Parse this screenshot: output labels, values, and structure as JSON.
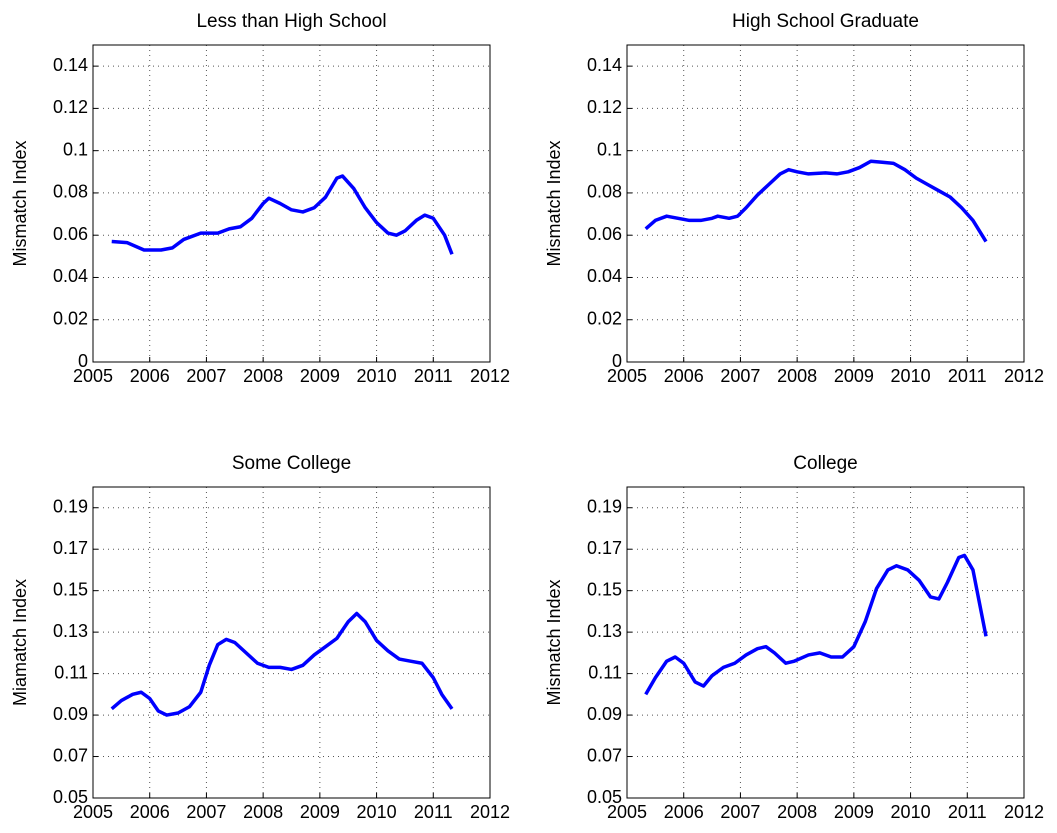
{
  "chart_data": [
    {
      "type": "line",
      "title": "Less than High School",
      "ylabel": "Mismatch Index",
      "color": "#0000ff",
      "grid": true,
      "xlim": [
        2005,
        2012
      ],
      "xticks": [
        2005,
        2006,
        2007,
        2008,
        2009,
        2010,
        2011,
        2012
      ],
      "ylim": [
        0,
        0.15
      ],
      "yticks": [
        0,
        0.02,
        0.04,
        0.06,
        0.08,
        0.1,
        0.12,
        0.14
      ],
      "x": [
        2005.33,
        2005.6,
        2005.9,
        2006.2,
        2006.4,
        2006.6,
        2006.9,
        2007.2,
        2007.4,
        2007.6,
        2007.8,
        2008.0,
        2008.1,
        2008.3,
        2008.5,
        2008.7,
        2008.9,
        2009.1,
        2009.3,
        2009.4,
        2009.6,
        2009.8,
        2010.0,
        2010.2,
        2010.35,
        2010.5,
        2010.7,
        2010.85,
        2011.0,
        2011.2,
        2011.33
      ],
      "values": [
        0.057,
        0.0565,
        0.053,
        0.053,
        0.054,
        0.058,
        0.061,
        0.061,
        0.063,
        0.064,
        0.068,
        0.075,
        0.0775,
        0.075,
        0.072,
        0.071,
        0.073,
        0.078,
        0.087,
        0.088,
        0.082,
        0.073,
        0.066,
        0.061,
        0.06,
        0.062,
        0.067,
        0.0695,
        0.068,
        0.06,
        0.051
      ]
    },
    {
      "type": "line",
      "title": "High School Graduate",
      "ylabel": "Mismatch Index",
      "color": "#0000ff",
      "grid": true,
      "xlim": [
        2005,
        2012
      ],
      "xticks": [
        2005,
        2006,
        2007,
        2008,
        2009,
        2010,
        2011,
        2012
      ],
      "ylim": [
        0,
        0.15
      ],
      "yticks": [
        0,
        0.02,
        0.04,
        0.06,
        0.08,
        0.1,
        0.12,
        0.14
      ],
      "x": [
        2005.33,
        2005.5,
        2005.7,
        2005.9,
        2006.1,
        2006.3,
        2006.5,
        2006.6,
        2006.8,
        2006.95,
        2007.1,
        2007.3,
        2007.5,
        2007.7,
        2007.85,
        2008.0,
        2008.2,
        2008.5,
        2008.7,
        2008.9,
        2009.1,
        2009.3,
        2009.5,
        2009.7,
        2009.9,
        2010.1,
        2010.3,
        2010.5,
        2010.7,
        2010.9,
        2011.1,
        2011.33
      ],
      "values": [
        0.063,
        0.067,
        0.069,
        0.068,
        0.067,
        0.067,
        0.068,
        0.069,
        0.068,
        0.069,
        0.073,
        0.079,
        0.084,
        0.089,
        0.091,
        0.09,
        0.089,
        0.0895,
        0.089,
        0.09,
        0.092,
        0.095,
        0.0945,
        0.094,
        0.091,
        0.087,
        0.084,
        0.081,
        0.078,
        0.073,
        0.067,
        0.057
      ]
    },
    {
      "type": "line",
      "title": "Some College",
      "ylabel": "Miamatch Index",
      "color": "#0000ff",
      "grid": true,
      "xlim": [
        2005,
        2012
      ],
      "xticks": [
        2005,
        2006,
        2007,
        2008,
        2009,
        2010,
        2011,
        2012
      ],
      "ylim": [
        0.05,
        0.2
      ],
      "yticks": [
        0.05,
        0.07,
        0.09,
        0.11,
        0.13,
        0.15,
        0.17,
        0.19
      ],
      "x": [
        2005.33,
        2005.5,
        2005.7,
        2005.85,
        2006.0,
        2006.15,
        2006.3,
        2006.5,
        2006.7,
        2006.9,
        2007.05,
        2007.2,
        2007.35,
        2007.5,
        2007.7,
        2007.9,
        2008.1,
        2008.3,
        2008.5,
        2008.7,
        2008.9,
        2009.1,
        2009.3,
        2009.5,
        2009.65,
        2009.8,
        2010.0,
        2010.2,
        2010.4,
        2010.6,
        2010.8,
        2011.0,
        2011.15,
        2011.33
      ],
      "values": [
        0.093,
        0.097,
        0.1,
        0.101,
        0.098,
        0.092,
        0.09,
        0.091,
        0.094,
        0.101,
        0.114,
        0.124,
        0.1265,
        0.125,
        0.12,
        0.115,
        0.113,
        0.113,
        0.112,
        0.114,
        0.119,
        0.123,
        0.127,
        0.135,
        0.139,
        0.135,
        0.126,
        0.121,
        0.117,
        0.116,
        0.115,
        0.108,
        0.1,
        0.093
      ]
    },
    {
      "type": "line",
      "title": "College",
      "ylabel": "Mismatch Index",
      "color": "#0000ff",
      "grid": true,
      "xlim": [
        2005,
        2012
      ],
      "xticks": [
        2005,
        2006,
        2007,
        2008,
        2009,
        2010,
        2011,
        2012
      ],
      "ylim": [
        0.05,
        0.2
      ],
      "yticks": [
        0.05,
        0.07,
        0.09,
        0.11,
        0.13,
        0.15,
        0.17,
        0.19
      ],
      "x": [
        2005.33,
        2005.5,
        2005.7,
        2005.85,
        2006.0,
        2006.2,
        2006.35,
        2006.5,
        2006.7,
        2006.9,
        2007.1,
        2007.3,
        2007.45,
        2007.6,
        2007.8,
        2007.95,
        2008.2,
        2008.4,
        2008.6,
        2008.8,
        2009.0,
        2009.2,
        2009.4,
        2009.6,
        2009.75,
        2009.95,
        2010.15,
        2010.35,
        2010.5,
        2010.65,
        2010.85,
        2010.95,
        2011.1,
        2011.33
      ],
      "values": [
        0.1,
        0.108,
        0.116,
        0.118,
        0.115,
        0.106,
        0.104,
        0.109,
        0.113,
        0.115,
        0.119,
        0.122,
        0.123,
        0.12,
        0.115,
        0.116,
        0.119,
        0.12,
        0.118,
        0.118,
        0.123,
        0.135,
        0.151,
        0.16,
        0.162,
        0.16,
        0.155,
        0.147,
        0.146,
        0.154,
        0.166,
        0.167,
        0.16,
        0.128
      ]
    }
  ]
}
